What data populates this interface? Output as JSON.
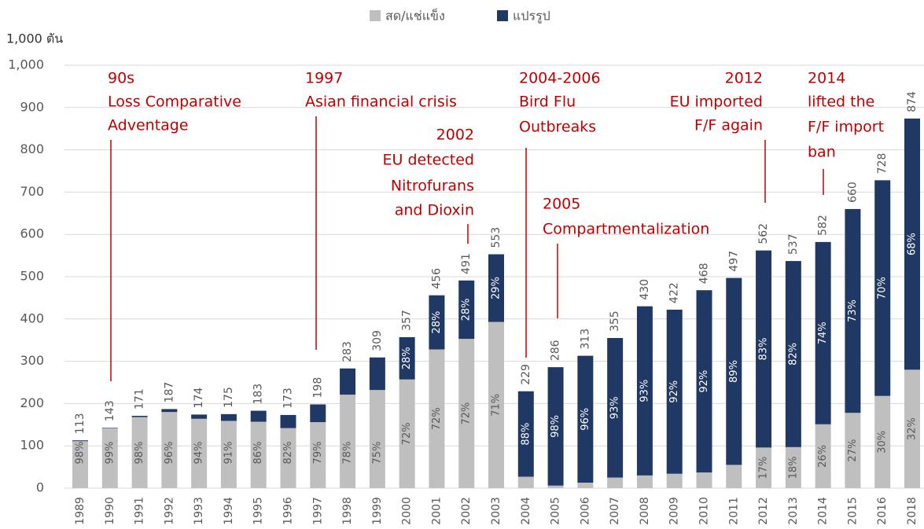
{
  "chart_data": {
    "type": "stacked_bar",
    "y_axis_label": "1,000 ตัน",
    "categories": [
      "1989",
      "1990",
      "1991",
      "1992",
      "1993",
      "1994",
      "1995",
      "1996",
      "1997",
      "1998",
      "1999",
      "2000",
      "2001",
      "2002",
      "2003",
      "2004",
      "2005",
      "2006",
      "2007",
      "2008",
      "2009",
      "2010",
      "2011",
      "2012",
      "2013",
      "2014",
      "2015",
      "2016",
      "2018"
    ],
    "series": [
      {
        "name": "สด/แช่แข็ง",
        "color": "#bfbfbf",
        "values": [
          111,
          142,
          168,
          180,
          164,
          159,
          157,
          142,
          156,
          221,
          232,
          257,
          328,
          353,
          393,
          27,
          6,
          13,
          25,
          30,
          34,
          37,
          55,
          96,
          97,
          151,
          178,
          218,
          280
        ],
        "percent_labels": [
          "98%",
          "99%",
          "98%",
          "96%",
          "94%",
          "91%",
          "86%",
          "82%",
          "79%",
          "78%",
          "75%",
          "72%",
          "72%",
          "72%",
          "71%",
          null,
          null,
          null,
          null,
          null,
          null,
          null,
          null,
          "17%",
          "18%",
          "26%",
          "27%",
          "30%",
          "32%"
        ]
      },
      {
        "name": "แปรรูป",
        "color": "#203864",
        "values": [
          2,
          1,
          3,
          7,
          10,
          16,
          26,
          31,
          42,
          62,
          77,
          100,
          128,
          138,
          160,
          202,
          280,
          300,
          330,
          400,
          388,
          431,
          442,
          466,
          440,
          431,
          482,
          510,
          594
        ],
        "percent_labels": [
          null,
          null,
          null,
          null,
          null,
          null,
          null,
          null,
          null,
          null,
          null,
          "28%",
          "28%",
          "28%",
          "29%",
          "88%",
          "98%",
          "96%",
          "93%",
          "93%",
          "92%",
          "92%",
          "89%",
          "83%",
          "82%",
          "74%",
          "73%",
          "70%",
          "68%"
        ]
      }
    ],
    "totals": [
      113,
      143,
      171,
      187,
      174,
      175,
      183,
      173,
      198,
      283,
      309,
      357,
      456,
      491,
      553,
      229,
      286,
      313,
      355,
      430,
      422,
      468,
      497,
      562,
      537,
      582,
      660,
      728,
      874
    ],
    "ylim": [
      0,
      1000
    ],
    "yticks": [
      0,
      100,
      200,
      300,
      400,
      500,
      600,
      700,
      800,
      900,
      {
        "value": 1000,
        "label": "1,000"
      }
    ],
    "grid": true,
    "legend": "top",
    "annotations": [
      [
        "90s",
        "Loss Comparative",
        "Adventage"
      ],
      [
        "1997",
        "Asian financial crisis"
      ],
      [
        "2002",
        "EU detected",
        "Nitrofurans",
        "and Dioxin"
      ],
      [
        "2004-2006",
        "Bird Flu",
        "Outbreaks"
      ],
      [
        "2005",
        "Compartmentalization"
      ],
      [
        "2012",
        "EU imported",
        "F/F again"
      ],
      [
        "2014",
        "lifted the",
        "F/F import",
        "ban"
      ]
    ]
  }
}
